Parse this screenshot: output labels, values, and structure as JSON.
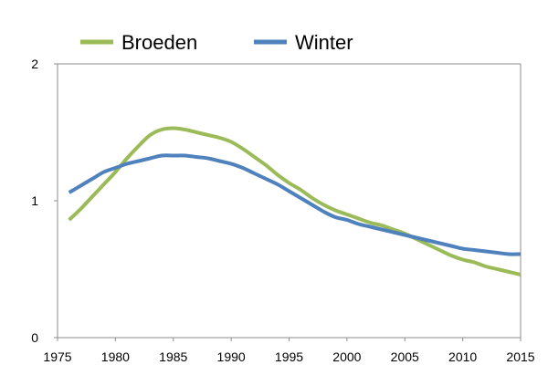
{
  "chart_data": {
    "type": "line",
    "xlim": [
      1975,
      2015
    ],
    "ylim": [
      0,
      2
    ],
    "x_ticks": [
      "1975",
      "1980",
      "1985",
      "1990",
      "1995",
      "2000",
      "2005",
      "2010",
      "2015"
    ],
    "y_ticks": [
      "0",
      "1",
      "2"
    ],
    "grid": false,
    "legend_position": "top-left",
    "x": [
      1976,
      1977,
      1978,
      1979,
      1980,
      1981,
      1982,
      1983,
      1984,
      1985,
      1986,
      1987,
      1988,
      1989,
      1990,
      1991,
      1992,
      1993,
      1994,
      1995,
      1996,
      1997,
      1998,
      1999,
      2000,
      2001,
      2002,
      2003,
      2004,
      2005,
      2006,
      2007,
      2008,
      2009,
      2010,
      2011,
      2012,
      2013,
      2014,
      2015
    ],
    "series": [
      {
        "name": "Broeden",
        "color": "#9bbb59",
        "values": [
          0.86,
          0.94,
          1.03,
          1.12,
          1.21,
          1.31,
          1.4,
          1.48,
          1.52,
          1.53,
          1.52,
          1.5,
          1.48,
          1.46,
          1.43,
          1.38,
          1.32,
          1.26,
          1.19,
          1.13,
          1.08,
          1.02,
          0.97,
          0.93,
          0.9,
          0.87,
          0.84,
          0.82,
          0.79,
          0.76,
          0.72,
          0.68,
          0.64,
          0.6,
          0.57,
          0.55,
          0.52,
          0.5,
          0.48,
          0.46
        ]
      },
      {
        "name": "Winter",
        "color": "#4f81bd",
        "values": [
          1.06,
          1.11,
          1.16,
          1.21,
          1.24,
          1.27,
          1.29,
          1.31,
          1.33,
          1.33,
          1.33,
          1.32,
          1.31,
          1.29,
          1.27,
          1.24,
          1.2,
          1.16,
          1.12,
          1.07,
          1.02,
          0.97,
          0.92,
          0.88,
          0.86,
          0.83,
          0.81,
          0.79,
          0.77,
          0.75,
          0.73,
          0.71,
          0.69,
          0.67,
          0.65,
          0.64,
          0.63,
          0.62,
          0.61,
          0.61
        ]
      }
    ]
  }
}
